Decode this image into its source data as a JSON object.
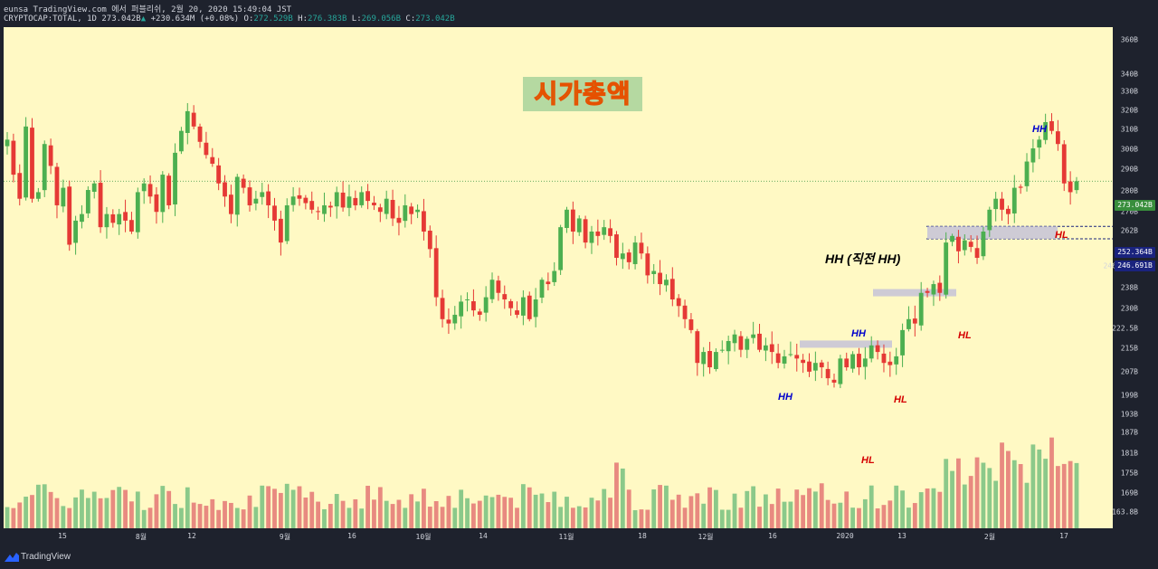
{
  "header": {
    "line1": "eunsa TradingView.com 에서 퍼블리쉬, 2월 20, 2020 15:49:04 JST",
    "symbol": "CRYPTOCAP:TOTAL, 1D",
    "last": "273.042B",
    "change": "+230.634M (+0.08%)",
    "o_label": "O:",
    "o": "272.529B",
    "h_label": "H:",
    "h": "276.383B",
    "l_label": "L:",
    "l": "269.056B",
    "c_label": "C:",
    "c": "273.042B"
  },
  "title_label": "시가총액",
  "annotations": [
    {
      "text": "HH",
      "kind": "hh"
    },
    {
      "text": "HL",
      "kind": "hl"
    },
    {
      "text": "HH",
      "kind": "hh"
    },
    {
      "text": "HL",
      "kind": "hl"
    },
    {
      "text": "HH",
      "kind": "hh"
    },
    {
      "text": "HL",
      "kind": "hl"
    },
    {
      "text": "HH (직전 HH)",
      "kind": "big"
    },
    {
      "text": "HH",
      "kind": "hh"
    },
    {
      "text": "HL",
      "kind": "hl"
    }
  ],
  "y_axis": {
    "ticks": [
      "360B",
      "340B",
      "330B",
      "320B",
      "310B",
      "300B",
      "290B",
      "280B",
      "270B",
      "262B",
      "246.691B",
      "238B",
      "230B",
      "222.5B",
      "215B",
      "207B",
      "199B",
      "193B",
      "187B",
      "181B",
      "175B",
      "169B",
      "163.8B"
    ],
    "badges": [
      {
        "text": "273.042B",
        "color": "#388e3c"
      },
      {
        "text": "252.364B",
        "color": "#1a237e"
      },
      {
        "text": "246.691B",
        "color": "#1a237e"
      }
    ]
  },
  "x_axis": {
    "ticks": [
      "15",
      "8월",
      "12",
      "9월",
      "16",
      "10월",
      "14",
      "11월",
      "18",
      "12월",
      "16",
      "2020",
      "13",
      "2월",
      "17"
    ]
  },
  "footer": {
    "brand": "TradingView"
  },
  "colors": {
    "up": "#4caf50",
    "down": "#e53935",
    "vol_up": "#8bc98a",
    "vol_down": "#e88a80",
    "bg": "#fff9c4",
    "zone": "#c5c3d8"
  },
  "chart_data": {
    "type": "candlestick",
    "symbol": "CRYPTOCAP:TOTAL",
    "interval": "1D",
    "last_close": 273.042,
    "approx_close_series_B": [
      292,
      276,
      265,
      298,
      265,
      268,
      290,
      280,
      262,
      270,
      244,
      255,
      258,
      269,
      272,
      252,
      258,
      254,
      258,
      255,
      250,
      268,
      272,
      266,
      259,
      276,
      262,
      286,
      296,
      305,
      298,
      291,
      285,
      281,
      272,
      266,
      258,
      275,
      270,
      262,
      265,
      268,
      262,
      255,
      245,
      262,
      266,
      265,
      263,
      260,
      259,
      262,
      261,
      268,
      261,
      266,
      262,
      268,
      264,
      262,
      259,
      265,
      256,
      254,
      262,
      258,
      260,
      250,
      242,
      220,
      210,
      208,
      212,
      218,
      219,
      214,
      212,
      220,
      228,
      222,
      219,
      215,
      212,
      220,
      210,
      219,
      228,
      226,
      232,
      252,
      260,
      250,
      256,
      245,
      250,
      248,
      252,
      248,
      238,
      240,
      236,
      245,
      240,
      230,
      232,
      226,
      228,
      219,
      216,
      210,
      205,
      190,
      195,
      188,
      195,
      196,
      200,
      203,
      196,
      201,
      203,
      196,
      198,
      195,
      190,
      193,
      194,
      192,
      190,
      186,
      190,
      188,
      183,
      181,
      192,
      188,
      194,
      188,
      192,
      198,
      195,
      190,
      189,
      193,
      205,
      210,
      208,
      222,
      222,
      226,
      222,
      245,
      248,
      241,
      246,
      243,
      238,
      250,
      260,
      265,
      260,
      258,
      270,
      270,
      282,
      288,
      292,
      300,
      296,
      290,
      272,
      268,
      273
    ]
  }
}
